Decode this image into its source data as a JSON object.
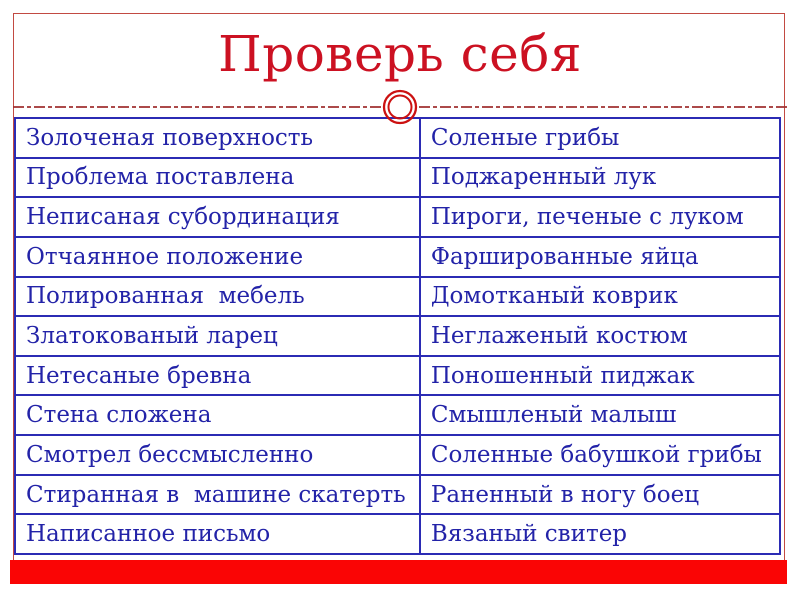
{
  "slide": {
    "title": "Проверь себя",
    "colors": {
      "title_red": "#cc1122",
      "frame_red": "#c24a42",
      "divider_red": "#a03030",
      "ornament_red": "#cc1111",
      "table_border_blue": "#2b2bb4",
      "text_blue": "#2323a8",
      "bottom_bar_red": "#fa0505"
    },
    "ornament_icon": "double-circle-ornament"
  },
  "table": {
    "rows": [
      [
        "Золоченая поверхность",
        "Соленые грибы"
      ],
      [
        "Проблема поставлена",
        "Поджаренный лук"
      ],
      [
        "Неписаная субординация",
        "Пироги, печеные с луком"
      ],
      [
        "Отчаянное положение",
        "Фаршированные яйца"
      ],
      [
        "Полированная  мебель",
        "Домотканый коврик"
      ],
      [
        "Златокованый ларец",
        "Неглаженый костюм"
      ],
      [
        "Нетесаные бревна",
        "Поношенный пиджак"
      ],
      [
        "Стена сложена",
        "Смышленый малыш"
      ],
      [
        "Смотрел бессмысленно",
        "Соленные бабушкой грибы"
      ],
      [
        "Стиранная в  машине скатерть",
        "Раненный в ногу боец"
      ],
      [
        "Написанное письмо",
        "Вязаный свитер"
      ]
    ]
  }
}
